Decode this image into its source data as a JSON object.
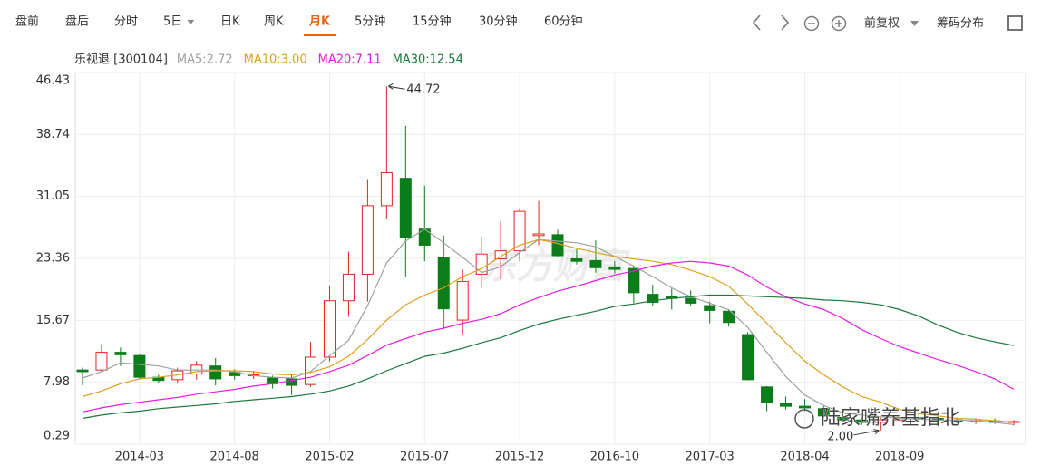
{
  "toolbar": {
    "tabs": [
      {
        "label": "盘前"
      },
      {
        "label": "盘后"
      },
      {
        "label": "分时"
      },
      {
        "label": "5日",
        "dropdown": true
      },
      {
        "label": "日K"
      },
      {
        "label": "周K"
      },
      {
        "label": "月K",
        "selected": true
      },
      {
        "label": "5分钟"
      },
      {
        "label": "15分钟"
      },
      {
        "label": "30分钟"
      },
      {
        "label": "60分钟"
      }
    ],
    "adjust": "前复权",
    "chips": "筹码分布"
  },
  "chart_data": {
    "type": "candlestick",
    "title": "乐视退 [300104]",
    "categories": [
      null,
      null,
      null,
      "2014-03",
      null,
      null,
      null,
      null,
      "2014-08",
      null,
      null,
      null,
      null,
      "2015-02",
      null,
      null,
      null,
      null,
      "2015-07",
      null,
      null,
      null,
      null,
      "2015-12",
      null,
      null,
      null,
      null,
      "2016-10",
      null,
      null,
      null,
      null,
      "2017-03",
      null,
      null,
      null,
      null,
      "2018-04",
      null,
      null,
      null,
      null,
      "2018-09",
      null,
      null,
      null,
      null,
      null,
      null
    ],
    "open": [
      9.5,
      9.5,
      11.7,
      11.3,
      8.6,
      8.3,
      9.0,
      10.0,
      9.2,
      8.8,
      8.5,
      8.4,
      7.7,
      11.1,
      18.1,
      21.4,
      29.9,
      33.3,
      27.0,
      23.5,
      15.7,
      21.4,
      23.3,
      24.3,
      26.2,
      26.3,
      23.3,
      23.1,
      22.3,
      22.1,
      18.9,
      18.6,
      18.4,
      17.5,
      16.8,
      13.9,
      7.4,
      5.3,
      5.0,
      4.7,
      3.6,
      3.3,
      3.0,
      3.3,
      3.6,
      3.5,
      3.3,
      3.1,
      3.2,
      3.0
    ],
    "high": [
      9.8,
      12.6,
      12.3,
      11.5,
      8.9,
      9.8,
      10.6,
      11.0,
      9.6,
      9.4,
      8.8,
      9.0,
      13.0,
      20.0,
      24.2,
      33.2,
      44.72,
      39.8,
      32.4,
      26.2,
      22.0,
      26.0,
      28.0,
      29.6,
      30.5,
      26.9,
      24.5,
      25.6,
      23.0,
      22.5,
      20.1,
      19.6,
      19.4,
      18.0,
      17.0,
      14.2,
      7.5,
      6.2,
      5.9,
      5.0,
      4.2,
      3.6,
      3.6,
      4.0,
      4.2,
      3.9,
      3.6,
      3.5,
      3.5,
      3.3
    ],
    "low": [
      7.6,
      9.3,
      10.0,
      8.4,
      7.9,
      7.9,
      8.3,
      7.6,
      8.3,
      8.4,
      7.2,
      6.4,
      7.4,
      10.6,
      16.1,
      18.0,
      28.2,
      21.0,
      23.0,
      14.6,
      13.9,
      19.7,
      20.8,
      23.0,
      25.0,
      23.5,
      22.6,
      21.6,
      21.5,
      17.8,
      17.5,
      17.0,
      17.5,
      15.3,
      14.9,
      8.2,
      4.4,
      4.6,
      4.4,
      3.6,
      3.0,
      2.7,
      2.0,
      3.0,
      3.2,
      3.1,
      2.9,
      2.8,
      2.8,
      2.6
    ],
    "close": [
      9.3,
      11.7,
      11.4,
      8.6,
      8.2,
      9.4,
      10.1,
      8.4,
      8.8,
      8.9,
      7.8,
      7.6,
      11.1,
      18.1,
      21.4,
      29.9,
      34.0,
      26.0,
      25.0,
      17.1,
      20.5,
      23.9,
      24.3,
      29.2,
      26.4,
      23.7,
      23.0,
      22.2,
      22.0,
      19.1,
      17.9,
      18.4,
      17.8,
      16.9,
      15.4,
      8.3,
      5.5,
      5.0,
      4.8,
      3.8,
      3.3,
      3.0,
      3.3,
      3.6,
      3.5,
      3.3,
      3.1,
      3.2,
      3.0,
      3.1
    ],
    "up_color": "#e8231f",
    "down_color": "#0b7d1a",
    "series": [
      {
        "name": "MA5:2.72",
        "color": "#a0a0a0",
        "values": [
          8.5,
          9.3,
          10.4,
          10.2,
          10.0,
          9.5,
          9.5,
          9.5,
          9.3,
          8.8,
          8.6,
          8.5,
          9.3,
          11.3,
          13.2,
          17.5,
          22.8,
          25.5,
          27.0,
          25.3,
          23.5,
          21.6,
          22.3,
          24.1,
          25.7,
          25.5,
          25.3,
          24.8,
          23.6,
          22.4,
          21.1,
          19.7,
          18.6,
          17.8,
          17.0,
          14.8,
          11.7,
          8.7,
          6.4,
          5.1,
          4.2,
          3.9,
          3.7,
          3.5,
          3.4,
          3.3,
          3.3,
          3.2,
          3.0,
          2.72
        ]
      },
      {
        "name": "MA10:3.00",
        "color": "#e0a020",
        "values": [
          6.2,
          6.9,
          7.8,
          8.4,
          8.6,
          8.9,
          9.3,
          9.4,
          9.4,
          9.3,
          9.0,
          8.9,
          9.2,
          9.9,
          11.2,
          13.3,
          15.7,
          17.6,
          18.8,
          19.7,
          21.1,
          22.1,
          23.6,
          25.0,
          25.7,
          25.2,
          24.6,
          24.1,
          23.6,
          23.3,
          23.0,
          22.6,
          21.9,
          21.1,
          19.9,
          17.7,
          15.3,
          12.9,
          10.6,
          8.9,
          7.4,
          6.2,
          5.5,
          4.6,
          4.1,
          3.8,
          3.5,
          3.4,
          3.2,
          3.0
        ]
      },
      {
        "name": "MA20:7.11",
        "color": "#e51ee5",
        "values": [
          4.3,
          4.8,
          5.2,
          5.5,
          5.8,
          6.1,
          6.5,
          6.8,
          7.1,
          7.5,
          7.8,
          8.2,
          8.6,
          9.3,
          10.1,
          11.3,
          12.6,
          13.4,
          14.2,
          14.7,
          15.3,
          15.8,
          16.5,
          17.6,
          18.5,
          19.3,
          19.9,
          20.6,
          21.3,
          21.8,
          22.4,
          22.8,
          23.0,
          22.8,
          22.4,
          21.3,
          19.8,
          18.6,
          17.7,
          17.0,
          15.9,
          14.5,
          13.4,
          12.4,
          11.6,
          10.8,
          10.1,
          9.3,
          8.4,
          7.11
        ]
      },
      {
        "name": "MA30:12.54",
        "color": "#1a7a3a",
        "values": [
          3.5,
          3.9,
          4.2,
          4.4,
          4.7,
          4.9,
          5.1,
          5.3,
          5.6,
          5.8,
          6.0,
          6.2,
          6.5,
          6.9,
          7.5,
          8.4,
          9.4,
          10.3,
          11.2,
          11.6,
          12.2,
          12.9,
          13.5,
          14.4,
          15.2,
          15.8,
          16.3,
          16.8,
          17.4,
          17.7,
          18.1,
          18.4,
          18.6,
          18.8,
          18.8,
          18.7,
          18.6,
          18.5,
          18.4,
          18.2,
          18.1,
          17.9,
          17.6,
          17.0,
          16.2,
          15.1,
          14.2,
          13.5,
          13.0,
          12.54
        ]
      }
    ],
    "annotations": [
      {
        "text": "44.72",
        "value": 44.72
      },
      {
        "text": "2.00",
        "value": 2.0
      }
    ],
    "ylim": [
      0.29,
      46.43
    ],
    "yticks": [
      0.29,
      7.98,
      15.67,
      23.36,
      31.05,
      38.74,
      46.43
    ],
    "grid": true
  },
  "watermarks": [
    "东方财富",
    "陆家嘴养基指北"
  ]
}
